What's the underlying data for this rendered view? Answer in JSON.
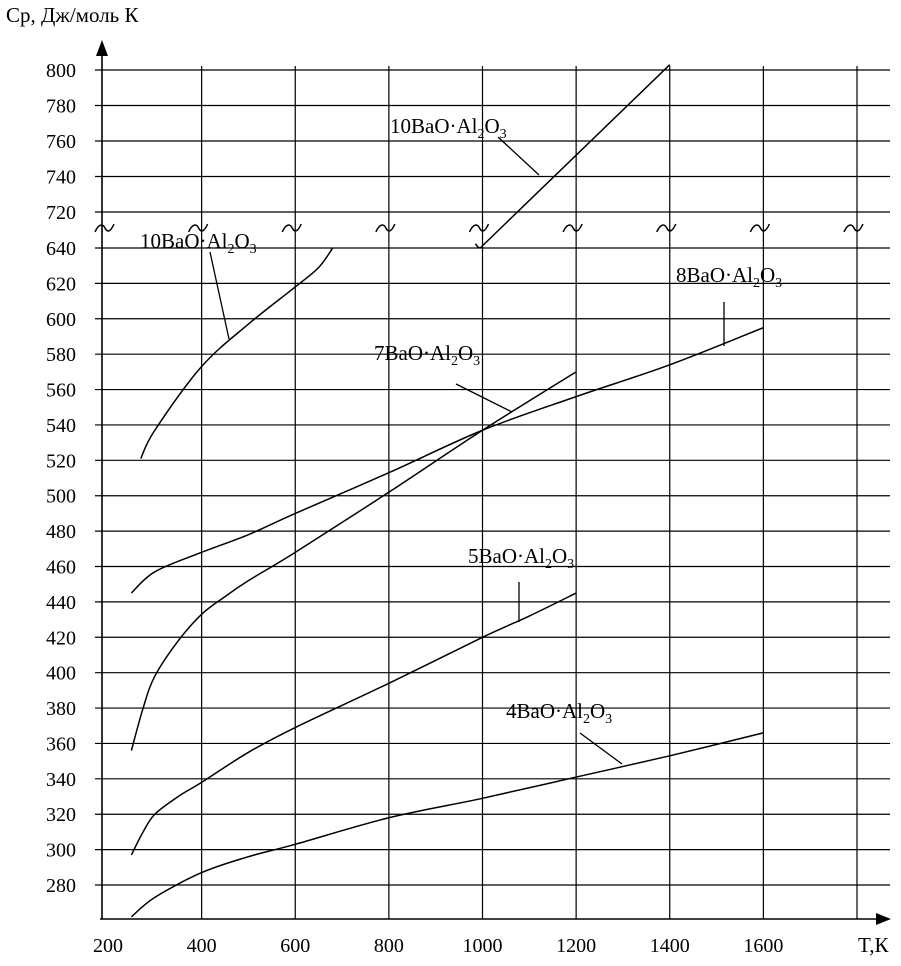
{
  "chart_data": {
    "type": "line",
    "ylabel": "Cp, Дж/моль К",
    "xlabel": "T,К",
    "x_ticks": [
      200,
      400,
      600,
      800,
      1000,
      1200,
      1400,
      1600
    ],
    "x_tick_labels": [
      "200",
      "400",
      "600",
      "800",
      "1000",
      "1200",
      "1400",
      "1600"
    ],
    "x_gridlines": [
      400,
      600,
      800,
      1000,
      1200,
      1400,
      1600,
      1800
    ],
    "xlim": [
      200,
      1800
    ],
    "y_ticks": [
      280,
      300,
      320,
      340,
      360,
      380,
      400,
      420,
      440,
      460,
      480,
      500,
      520,
      540,
      560,
      580,
      600,
      620,
      640,
      720,
      740,
      760,
      780,
      800
    ],
    "y_tick_labels": [
      "280",
      "300",
      "320",
      "340",
      "360",
      "380",
      "400",
      "420",
      "440",
      "460",
      "480",
      "500",
      "520",
      "540",
      "560",
      "580",
      "600",
      "620",
      "640",
      "720",
      "740",
      "760",
      "780",
      "800"
    ],
    "axis_break": {
      "between": [
        640,
        720
      ]
    },
    "grid": true,
    "series": [
      {
        "name": "4BaO·Al2O3",
        "label": {
          "main": "4BaO·Al",
          "sub1": "2",
          "mid": "O",
          "sub2": "3"
        },
        "x": [
          250,
          300,
          400,
          500,
          600,
          800,
          1000,
          1200,
          1400,
          1600
        ],
        "y": [
          262,
          273,
          287,
          296,
          303,
          318,
          329,
          341,
          353,
          366
        ]
      },
      {
        "name": "5BaO·Al2O3",
        "label": {
          "main": "5BaO·Al",
          "sub1": "2",
          "mid": "O",
          "sub2": "3"
        },
        "x": [
          250,
          275,
          300,
          350,
          400,
          500,
          600,
          800,
          1000,
          1100,
          1200
        ],
        "y": [
          297,
          310,
          320,
          330,
          338,
          355,
          369,
          394,
          420,
          432,
          445
        ]
      },
      {
        "name": "7BaO·Al2O3",
        "label": {
          "main": "7BaO·Al",
          "sub1": "2",
          "mid": "O",
          "sub2": "3"
        },
        "x": [
          250,
          275,
          300,
          350,
          400,
          450,
          500,
          600,
          800,
          1000,
          1200
        ],
        "y": [
          356,
          380,
          398,
          418,
          433,
          443,
          452,
          468,
          502,
          537,
          570
        ]
      },
      {
        "name": "8BaO·Al2O3",
        "label": {
          "main": "8BaO·Al",
          "sub1": "2",
          "mid": "O",
          "sub2": "3"
        },
        "x": [
          250,
          300,
          400,
          500,
          600,
          800,
          1000,
          1200,
          1400,
          1600
        ],
        "y": [
          445,
          457,
          468,
          478,
          490,
          513,
          537,
          556,
          574,
          595
        ]
      },
      {
        "name": "10BaO·Al2O3",
        "label": {
          "main": "10BaO·Al",
          "sub1": "2",
          "mid": "O",
          "sub2": "3"
        },
        "x": [
          270,
          300,
          400,
          500,
          600,
          650,
          680
        ],
        "y": [
          521,
          537,
          573,
          597,
          618,
          629,
          640
        ]
      },
      {
        "name": "10BaO·Al2O3",
        "label": {
          "main": "10BaO·Al",
          "sub1": "2",
          "mid": "O",
          "sub2": "3"
        },
        "x": [
          1000,
          1400
        ],
        "y": [
          645,
          803
        ],
        "upper_segment": true
      }
    ]
  }
}
